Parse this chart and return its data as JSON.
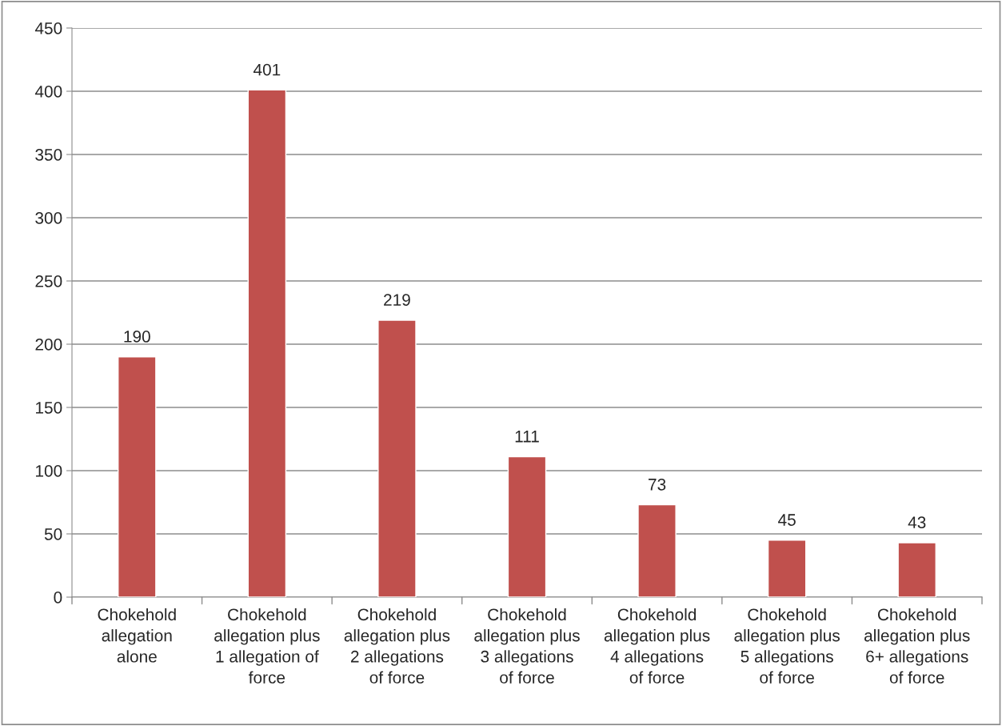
{
  "chart_data": {
    "type": "bar",
    "categories": [
      "Chokehold\nallegation\nalone",
      "Chokehold\nallegation plus\n1 allegation of\nforce",
      "Chokehold\nallegation plus\n2 allegations\nof force",
      "Chokehold\nallegation plus\n3 allegations\nof force",
      "Chokehold\nallegation plus\n4 allegations\nof force",
      "Chokehold\nallegation plus\n5 allegations\nof force",
      "Chokehold\nallegation plus\n6+ allegations\nof force"
    ],
    "values": [
      190,
      401,
      219,
      111,
      73,
      45,
      43
    ],
    "color": "#c0504d",
    "ylim": [
      0,
      450
    ],
    "yticks": [
      0,
      50,
      100,
      150,
      200,
      250,
      300,
      350,
      400,
      450
    ],
    "grid": "y",
    "data_labels": true,
    "legend": false
  }
}
